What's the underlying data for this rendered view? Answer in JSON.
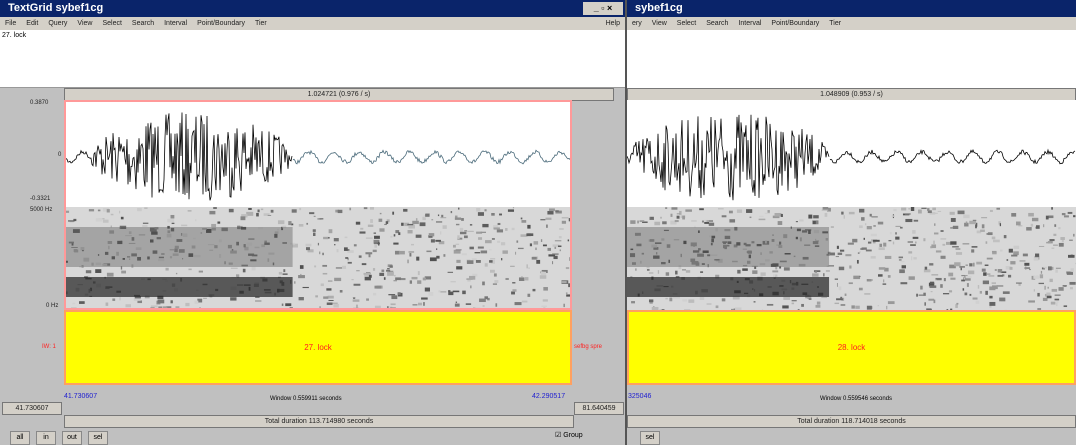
{
  "left_window": {
    "title": "TextGrid sybef1cg",
    "menu": [
      "File",
      "Edit",
      "Query",
      "View",
      "Select",
      "Search",
      "Interval",
      "Point/Boundary",
      "Tier"
    ],
    "help": "Help",
    "text_field": "27. lock",
    "selection_bar": "1.024721 (0.976 / s)",
    "wave_max": "0.3870",
    "wave_zero": "0",
    "wave_min": "-0.3321",
    "freq_max": "5000 Hz",
    "freq_min": "0 Hz",
    "tier_label": "IW: 1",
    "interval_text": "27. lock",
    "tier_right_label": "sefbg spre",
    "window_start": "41.730607",
    "window_label": "Window 0.559911 seconds",
    "window_end": "42.290517",
    "left_box": "41.730607",
    "right_box": "81.640459",
    "total_duration": "Total duration 113.714980 seconds",
    "buttons": [
      "all",
      "in",
      "out",
      "sel"
    ],
    "group": "Group"
  },
  "right_window": {
    "title": "sybef1cg",
    "menu": [
      "ery",
      "View",
      "Select",
      "Search",
      "Interval",
      "Point/Boundary",
      "Tier"
    ],
    "selection_bar": "1.048909 (0.953 / s)",
    "interval_text": "28. lock",
    "window_start": "325046",
    "window_label": "Window 0.559546 seconds",
    "total_duration": "Total duration 118.714018 seconds",
    "buttons": [
      "sel"
    ]
  }
}
